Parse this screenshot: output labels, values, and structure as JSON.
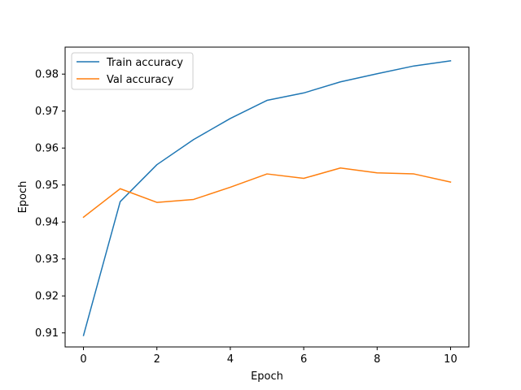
{
  "chart_data": {
    "type": "line",
    "xlabel": "Epoch",
    "ylabel": "Epoch",
    "xlim": [
      -0.5,
      10.5
    ],
    "ylim": [
      0.9062,
      0.9873
    ],
    "xticks": [
      0,
      2,
      4,
      6,
      8,
      10
    ],
    "xtick_labels": [
      "0",
      "2",
      "4",
      "6",
      "8",
      "10"
    ],
    "yticks": [
      0.91,
      0.92,
      0.93,
      0.94,
      0.95,
      0.96,
      0.97,
      0.98
    ],
    "ytick_labels": [
      "0.91",
      "0.92",
      "0.93",
      "0.94",
      "0.95",
      "0.96",
      "0.97",
      "0.98"
    ],
    "grid": false,
    "legend_position": "top-left",
    "x": [
      0,
      1,
      2,
      3,
      4,
      5,
      6,
      7,
      8,
      9,
      10
    ],
    "series": [
      {
        "name": "Train accuracy",
        "color": "#1f77b4",
        "values": [
          0.9093,
          0.9455,
          0.9555,
          0.9623,
          0.968,
          0.9729,
          0.9749,
          0.9779,
          0.9801,
          0.9822,
          0.9836
        ]
      },
      {
        "name": "Val accuracy",
        "color": "#ff7f0e",
        "values": [
          0.9413,
          0.949,
          0.9453,
          0.9461,
          0.9494,
          0.953,
          0.9518,
          0.9546,
          0.9533,
          0.953,
          0.9508
        ]
      }
    ]
  }
}
